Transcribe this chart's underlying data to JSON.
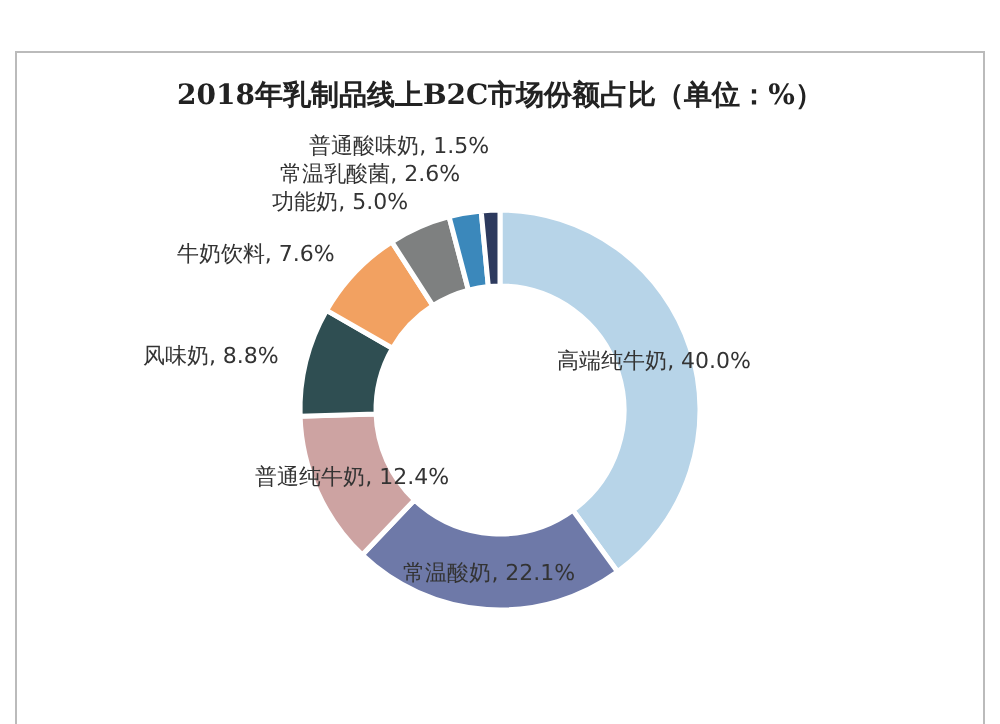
{
  "chart_data": {
    "type": "donut",
    "title": "2018年乳制品线上B2C市场份额占比（单位：%）",
    "categories": [
      "高端纯牛奶",
      "常温酸奶",
      "普通纯牛奶",
      "风味奶",
      "牛奶饮料",
      "功能奶",
      "常温乳酸菌",
      "普通酸味奶"
    ],
    "values": [
      40.0,
      22.1,
      12.4,
      8.8,
      7.6,
      5.0,
      2.6,
      1.5
    ],
    "value_labels": [
      "40.0%",
      "22.1%",
      "12.4%",
      "8.8%",
      "7.6%",
      "5.0%",
      "2.6%",
      "1.5%"
    ],
    "colors": [
      "#b7d4e8",
      "#6e79a8",
      "#cda3a2",
      "#2f4e52",
      "#f2a161",
      "#7e8080",
      "#3b88bb",
      "#2d3a5e"
    ]
  }
}
